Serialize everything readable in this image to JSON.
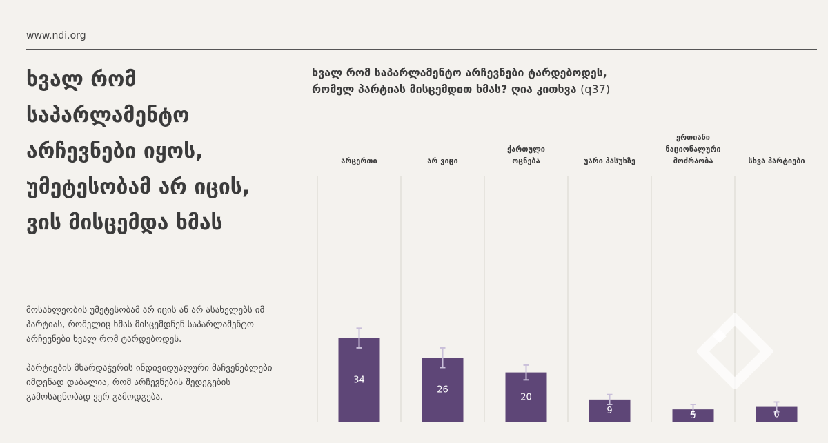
{
  "header": {
    "site_url": "www.ndi.org"
  },
  "headline": "ხვალ რომ საპარლამენტო არჩევნები იყოს, უმეტესობამ არ იცის, ვის მისცემდა ხმას",
  "body": {
    "paragraph_1": "მოსახლეობის უმეტესობამ არ იცის ან არ ასახელებს იმ პარტიას, რომელიც ხმას მისცემდნენ საპარლამენტო არჩევნები ხვალ რომ ტარდებოდეს.",
    "paragraph_2": "პარტიების მხარდაჭერის ინდივიდუალური მაჩვენებლები იმდენად დაბალია, რომ არჩევნების შედეგების გამოსაცნობად ვერ გამოდგება."
  },
  "chart_title": {
    "line_1": "ხვალ რომ საპარლამენტო არჩევნები ტარდებოდეს,",
    "line_2": "რომელ პარტიას მისცემდით ხმას? ღია კითხვა",
    "note": "(q37)"
  },
  "colors": {
    "bar": "#5e4677",
    "error_bar": "#c9bfd9",
    "divider": "#d9d5cf",
    "text": "#3b3b3b"
  },
  "chart_data": {
    "type": "bar",
    "title": "ხვალ რომ საპარლამენტო არჩევნები ტარდებოდეს, რომელ პარტიას მისცემდით ხმას? ღია კითხვა (q37)",
    "categories": [
      [
        "არცერთი"
      ],
      [
        "არ ვიცი"
      ],
      [
        "ქართული",
        "ოცნება"
      ],
      [
        "უარი პასუხზე"
      ],
      [
        "ერთიანი",
        "ნაციონალური",
        "მოძრაობა"
      ],
      [
        "სხვა პარტიები"
      ]
    ],
    "values": [
      34,
      26,
      20,
      9,
      5,
      6
    ],
    "error_low": [
      30,
      22,
      17,
      7,
      3,
      4
    ],
    "error_high": [
      38,
      30,
      23,
      11,
      7,
      8
    ],
    "ylim": [
      0,
      100
    ],
    "xlabel": "",
    "ylabel": ""
  }
}
